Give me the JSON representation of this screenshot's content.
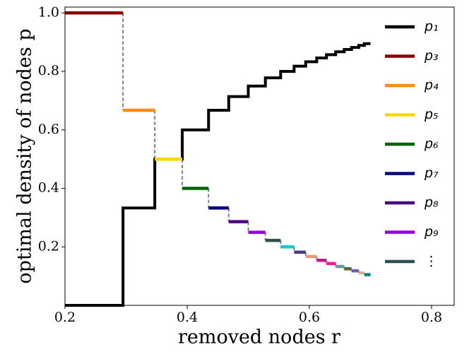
{
  "chart_data": {
    "type": "step",
    "xlabel": "removed nodes r",
    "ylabel": "optimal density of nodes p",
    "xlim": [
      0.2,
      0.837
    ],
    "ylim": [
      0,
      1.02
    ],
    "xticks": [
      0.2,
      0.4,
      0.6,
      0.8
    ],
    "yticks": [
      0.2,
      0.4,
      0.6,
      0.8,
      {
        "value": 1,
        "label": "1.0"
      }
    ],
    "legend": "upper right",
    "connector_color": "#808080",
    "series": [
      {
        "name": "p₁",
        "color": "#000000",
        "x": [
          0.2,
          0.295,
          0.347,
          0.392,
          0.435,
          0.468,
          0.5,
          0.528,
          0.553,
          0.575,
          0.594,
          0.612,
          0.628,
          0.643,
          0.657,
          0.669,
          0.681,
          0.69,
          0.7
        ],
        "values": [
          0,
          0.333,
          0.5,
          0.6,
          0.667,
          0.714,
          0.75,
          0.778,
          0.8,
          0.818,
          0.833,
          0.846,
          0.857,
          0.867,
          0.875,
          0.882,
          0.889,
          0.895,
          0.895
        ]
      },
      {
        "name": "p₃",
        "color": "#8b0000",
        "x": [
          0.2,
          0.295
        ],
        "values": [
          1,
          1
        ]
      },
      {
        "name": "p₄",
        "color": "#ff8c00",
        "x": [
          0.295,
          0.347
        ],
        "values": [
          0.667,
          0.667
        ]
      },
      {
        "name": "p₅",
        "color": "#ffd700",
        "x": [
          0.347,
          0.392
        ],
        "values": [
          0.5,
          0.5
        ]
      },
      {
        "name": "p₆",
        "color": "#006400",
        "x": [
          0.392,
          0.435
        ],
        "values": [
          0.4,
          0.4
        ]
      },
      {
        "name": "p₇",
        "color": "#000080",
        "x": [
          0.435,
          0.468
        ],
        "values": [
          0.333,
          0.333
        ]
      },
      {
        "name": "p₈",
        "color": "#4b0082",
        "x": [
          0.468,
          0.5
        ],
        "values": [
          0.286,
          0.286
        ]
      },
      {
        "name": "p₉",
        "color": "#9400d3",
        "x": [
          0.5,
          0.528
        ],
        "values": [
          0.25,
          0.25
        ]
      },
      {
        "name": "⋮",
        "color": "#2f4f4f",
        "x": [
          0.528,
          0.553
        ],
        "values": [
          0.222,
          0.222
        ]
      },
      {
        "color": "#00ced1",
        "x": [
          0.553,
          0.575
        ],
        "values": [
          0.2,
          0.2
        ]
      },
      {
        "color": "#483d8b",
        "x": [
          0.575,
          0.594
        ],
        "values": [
          0.182,
          0.182
        ]
      },
      {
        "color": "#e9967a",
        "x": [
          0.594,
          0.612
        ],
        "values": [
          0.167,
          0.167
        ]
      },
      {
        "color": "#c71585",
        "x": [
          0.612,
          0.628
        ],
        "values": [
          0.154,
          0.154
        ]
      },
      {
        "color": "#ff1493",
        "x": [
          0.628,
          0.643
        ],
        "values": [
          0.143,
          0.143
        ]
      },
      {
        "color": "#5f9ea0",
        "x": [
          0.643,
          0.657
        ],
        "values": [
          0.133,
          0.133
        ]
      },
      {
        "color": "#556b2f",
        "x": [
          0.657,
          0.669
        ],
        "values": [
          0.125,
          0.125
        ]
      },
      {
        "color": "#6a5acd",
        "x": [
          0.669,
          0.681
        ],
        "values": [
          0.118,
          0.118
        ]
      },
      {
        "color": "#d2b48c",
        "x": [
          0.681,
          0.69
        ],
        "values": [
          0.111,
          0.111
        ]
      },
      {
        "color": "#008080",
        "x": [
          0.69,
          0.7
        ],
        "values": [
          0.105,
          0.105
        ]
      }
    ]
  }
}
